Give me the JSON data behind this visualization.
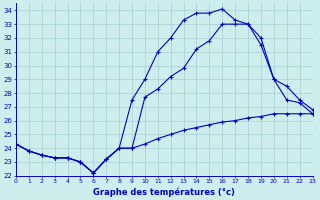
{
  "xlabel": "Graphe des températures (°c)",
  "background_color": "#ceeeed",
  "grid_color": "#b0d8d8",
  "line_color": "#0000cc",
  "hours": [
    0,
    1,
    2,
    3,
    4,
    5,
    6,
    7,
    8,
    9,
    10,
    11,
    12,
    13,
    14,
    15,
    16,
    17,
    18,
    19,
    20,
    21,
    22,
    23
  ],
  "series1": [
    24.3,
    23.8,
    23.5,
    23.3,
    23.3,
    23.0,
    22.2,
    23.2,
    24.0,
    27.5,
    29.0,
    31.0,
    32.0,
    33.3,
    33.8,
    33.8,
    34.1,
    33.3,
    33.0,
    32.0,
    29.0,
    27.5,
    27.3,
    26.5
  ],
  "series2": [
    24.3,
    23.8,
    23.5,
    23.3,
    23.3,
    23.0,
    22.2,
    23.2,
    24.0,
    24.0,
    27.7,
    28.3,
    29.2,
    29.8,
    31.2,
    31.8,
    33.0,
    33.0,
    33.0,
    31.5,
    29.0,
    28.5,
    27.5,
    26.8
  ],
  "series3": [
    24.3,
    23.8,
    23.5,
    23.3,
    23.3,
    23.0,
    22.2,
    23.2,
    24.0,
    24.0,
    24.3,
    24.7,
    25.0,
    25.3,
    25.5,
    25.7,
    25.9,
    26.0,
    26.2,
    26.3,
    26.5,
    26.5,
    26.5,
    26.5
  ],
  "ylim": [
    22,
    34.5
  ],
  "yticks": [
    22,
    23,
    24,
    25,
    26,
    27,
    28,
    29,
    30,
    31,
    32,
    33,
    34
  ],
  "xlim": [
    0,
    23
  ]
}
